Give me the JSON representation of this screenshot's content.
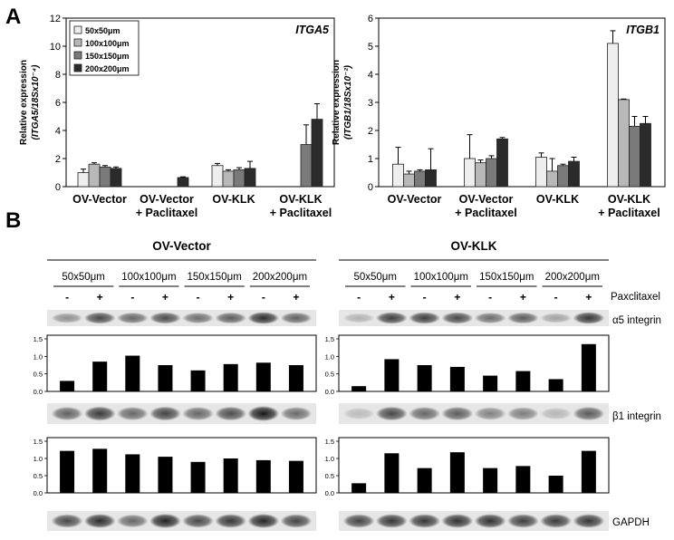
{
  "panels": {
    "a": "A",
    "b": "B"
  },
  "chart_data": [
    {
      "type": "bar",
      "title": "ITGA5",
      "ylabel_line1": "Relative expression",
      "ylabel_line2": "(ITGA5/18Sx10⁻⁴)",
      "ylim": [
        0,
        12
      ],
      "yticks": [
        0,
        2,
        4,
        6,
        8,
        10,
        12
      ],
      "categories": [
        "OV-Vector",
        "OV-Vector\n+ Paclitaxel",
        "OV-KLK",
        "OV-KLK\n+ Paclitaxel"
      ],
      "series": [
        {
          "name": "50x50μm",
          "color": "#eeeeee",
          "values": [
            1.0,
            null,
            1.5,
            null
          ],
          "errors": [
            0.25,
            null,
            0.15,
            null
          ]
        },
        {
          "name": "100x100μm",
          "color": "#b8b8b8",
          "values": [
            1.6,
            null,
            1.1,
            null
          ],
          "errors": [
            0.1,
            null,
            0.1,
            null
          ]
        },
        {
          "name": "150x150μm",
          "color": "#7a7a7a",
          "values": [
            1.4,
            null,
            1.2,
            3.0
          ],
          "errors": [
            0.1,
            null,
            0.15,
            1.4
          ]
        },
        {
          "name": "200x200μm",
          "color": "#2b2b2b",
          "values": [
            1.3,
            0.65,
            1.3,
            4.8
          ],
          "errors": [
            0.1,
            0.05,
            0.5,
            1.1
          ]
        }
      ],
      "legend_position": "top-left",
      "grid": false
    },
    {
      "type": "bar",
      "title": "ITGB1",
      "ylabel_line1": "Relative expression",
      "ylabel_line2": "(ITGB1/18Sx10⁻²)",
      "ylim": [
        0,
        6
      ],
      "yticks": [
        0,
        1,
        2,
        3,
        4,
        5,
        6
      ],
      "categories": [
        "OV-Vector",
        "OV-Vector\n+ Paclitaxel",
        "OV-KLK",
        "OV-KLK\n+ Paclitaxel"
      ],
      "series": [
        {
          "name": "50x50μm",
          "color": "#eeeeee",
          "values": [
            0.8,
            1.0,
            1.05,
            5.1
          ],
          "errors": [
            0.6,
            0.85,
            0.15,
            0.45
          ]
        },
        {
          "name": "100x100μm",
          "color": "#b8b8b8",
          "values": [
            0.45,
            0.85,
            0.55,
            3.1
          ],
          "errors": [
            0.1,
            0.1,
            0.45,
            0.02
          ]
        },
        {
          "name": "150x150μm",
          "color": "#7a7a7a",
          "values": [
            0.55,
            1.0,
            0.75,
            2.15
          ],
          "errors": [
            0.05,
            0.1,
            0.05,
            0.35
          ]
        },
        {
          "name": "200x200μm",
          "color": "#2b2b2b",
          "values": [
            0.6,
            1.7,
            0.9,
            2.25
          ],
          "errors": [
            0.75,
            0.05,
            0.15,
            0.25
          ]
        }
      ],
      "grid": false
    },
    {
      "type": "bar",
      "group": "OV-Vector",
      "protein": "α5 integrin",
      "ylim": [
        0,
        1.5
      ],
      "yticks": [
        "0.0",
        "0.5",
        "1.0",
        "1.5"
      ],
      "categories": [
        "50x50μm -",
        "50x50μm +",
        "100x100μm -",
        "100x100μm +",
        "150x150μm -",
        "150x150μm +",
        "200x200μm -",
        "200x200μm +"
      ],
      "values": [
        0.3,
        0.85,
        1.02,
        0.75,
        0.6,
        0.78,
        0.82,
        0.75
      ]
    },
    {
      "type": "bar",
      "group": "OV-KLK",
      "protein": "α5 integrin",
      "ylim": [
        0,
        1.5
      ],
      "yticks": [
        "0.0",
        "0.5",
        "1.0",
        "1.5"
      ],
      "categories": [
        "50x50μm -",
        "50x50μm +",
        "100x100μm -",
        "100x100μm +",
        "150x150μm -",
        "150x150μm +",
        "200x200μm -",
        "200x200μm +"
      ],
      "values": [
        0.15,
        0.92,
        0.75,
        0.7,
        0.45,
        0.58,
        0.35,
        1.35
      ]
    },
    {
      "type": "bar",
      "group": "OV-Vector",
      "protein": "β1 integrin",
      "ylim": [
        0,
        1.5
      ],
      "yticks": [
        "0.0",
        "0.5",
        "1.0",
        "1.5"
      ],
      "categories": [
        "50x50μm -",
        "50x50μm +",
        "100x100μm -",
        "100x100μm +",
        "150x150μm -",
        "150x150μm +",
        "200x200μm -",
        "200x200μm +"
      ],
      "values": [
        1.22,
        1.28,
        1.12,
        1.05,
        0.9,
        1.0,
        0.95,
        0.93
      ]
    },
    {
      "type": "bar",
      "group": "OV-KLK",
      "protein": "β1 integrin",
      "ylim": [
        0,
        1.5
      ],
      "yticks": [
        "0.0",
        "0.5",
        "1.0",
        "1.5"
      ],
      "categories": [
        "50x50μm -",
        "50x50μm +",
        "100x100μm -",
        "100x100μm +",
        "150x150μm -",
        "150x150μm +",
        "200x200μm -",
        "200x200μm +"
      ],
      "values": [
        0.28,
        1.15,
        0.72,
        1.18,
        0.72,
        0.78,
        0.5,
        1.22
      ]
    }
  ],
  "western_blot": {
    "groups": [
      "OV-Vector",
      "OV-KLK"
    ],
    "sizes": [
      "50x50μm",
      "100x100μm",
      "150x150μm",
      "200x200μm"
    ],
    "treatment_signs": [
      "-",
      "+"
    ],
    "treatment_label": "Paxclitaxel",
    "protein_rows": [
      "α5 integrin",
      "β1 integrin",
      "GAPDH"
    ],
    "band_intensity": {
      "OV-Vector": {
        "α5 integrin": [
          0.3,
          0.72,
          0.55,
          0.7,
          0.5,
          0.6,
          0.88,
          0.58
        ],
        "β1 integrin": [
          0.58,
          0.8,
          0.55,
          0.75,
          0.55,
          0.7,
          1.0,
          0.52
        ],
        "GAPDH": [
          0.72,
          0.88,
          0.55,
          0.95,
          0.72,
          0.82,
          0.92,
          0.75
        ]
      },
      "OV-KLK": {
        "α5 integrin": [
          0.1,
          0.78,
          0.78,
          0.72,
          0.5,
          0.6,
          0.2,
          0.82
        ],
        "β1 integrin": [
          0.05,
          0.72,
          0.55,
          0.6,
          0.38,
          0.42,
          0.08,
          0.62
        ],
        "GAPDH": [
          0.75,
          0.82,
          0.82,
          0.85,
          0.85,
          0.78,
          0.8,
          0.82
        ]
      }
    }
  }
}
